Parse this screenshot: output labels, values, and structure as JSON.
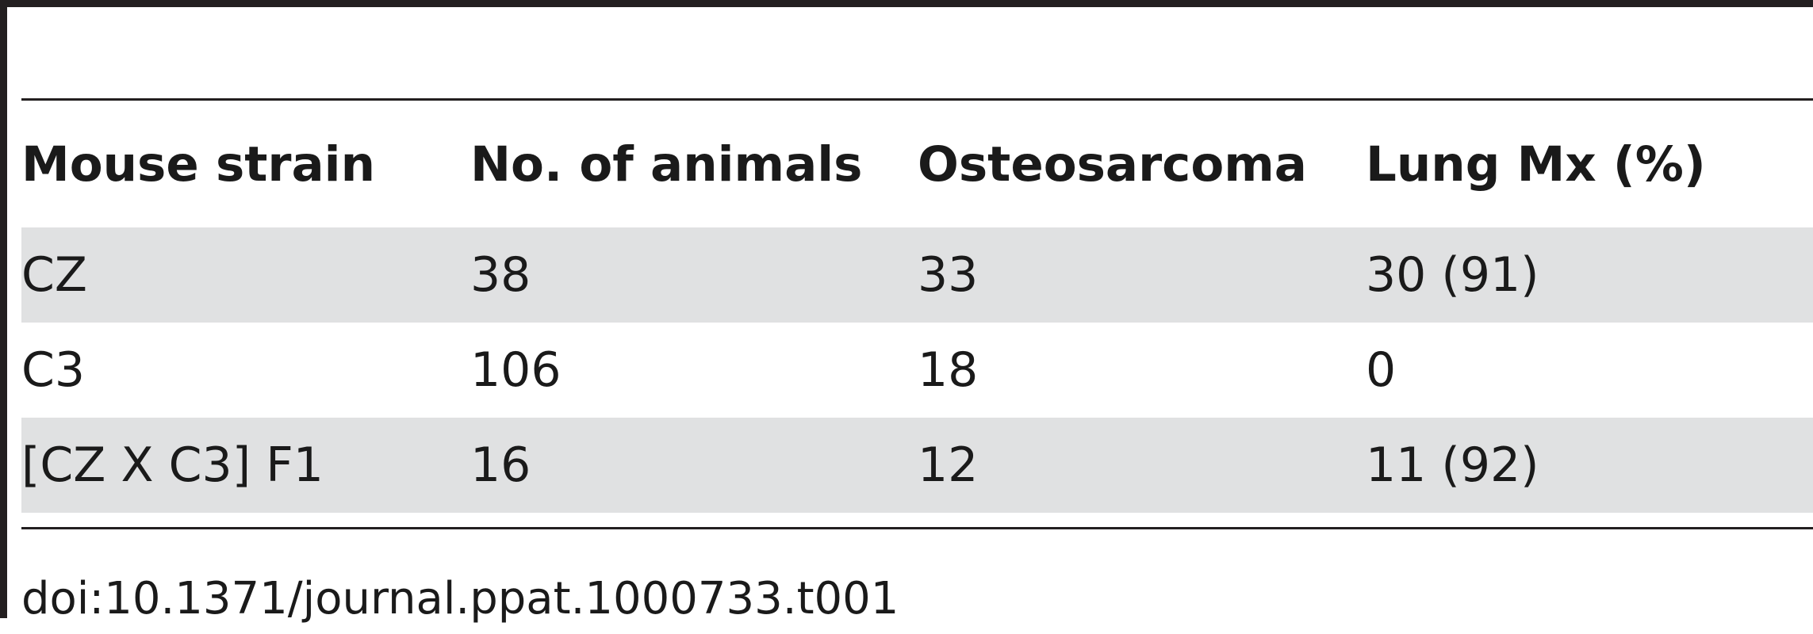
{
  "table": {
    "headers": [
      "Mouse strain",
      "No. of animals",
      "Osteosarcoma",
      "Lung Mx (%)"
    ],
    "rows": [
      [
        "CZ",
        "38",
        "33",
        "30 (91)"
      ],
      [
        "C3",
        "106",
        "18",
        "0"
      ],
      [
        "[CZ X C3] F1",
        "16",
        "12",
        "11 (92)"
      ]
    ]
  },
  "footer": {
    "doi": "doi:10.1371/journal.ppat.1000733.t001"
  },
  "colors": {
    "rule": "#231f20",
    "row_shade": "#e0e1e2"
  }
}
